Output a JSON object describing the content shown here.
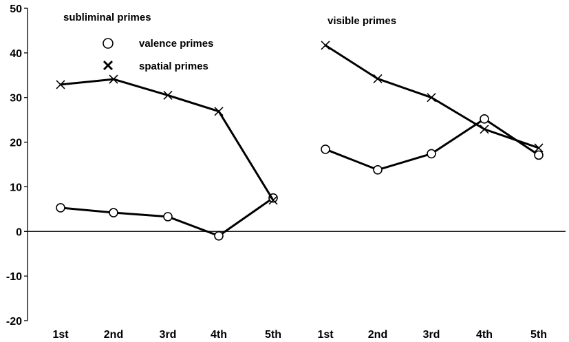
{
  "chart_data": {
    "type": "line",
    "ylim": [
      -20,
      50
    ],
    "yticks": [
      -20,
      -10,
      0,
      10,
      20,
      30,
      40,
      50
    ],
    "categories": [
      "1st",
      "2nd",
      "3rd",
      "4th",
      "5th"
    ],
    "legend": {
      "placement": "top-left",
      "entries": [
        {
          "label": "valence primes",
          "marker": "circle"
        },
        {
          "label": "spatial primes",
          "marker": "cross"
        }
      ]
    },
    "panels": [
      {
        "title": "subliminal primes",
        "series": [
          {
            "name": "valence primes",
            "marker": "circle",
            "values": [
              5.3,
              4.2,
              3.3,
              -1.0,
              7.5
            ]
          },
          {
            "name": "spatial primes",
            "marker": "cross",
            "values": [
              32.9,
              34.1,
              30.5,
              26.9,
              7.0
            ]
          }
        ]
      },
      {
        "title": "visible primes",
        "series": [
          {
            "name": "valence primes",
            "marker": "circle",
            "values": [
              18.4,
              13.8,
              17.4,
              25.2,
              17.1
            ]
          },
          {
            "name": "spatial primes",
            "marker": "cross",
            "values": [
              41.7,
              34.2,
              30.0,
              22.9,
              18.7
            ]
          }
        ]
      }
    ],
    "colors": {
      "lines": "#000000",
      "background": "#ffffff"
    }
  }
}
